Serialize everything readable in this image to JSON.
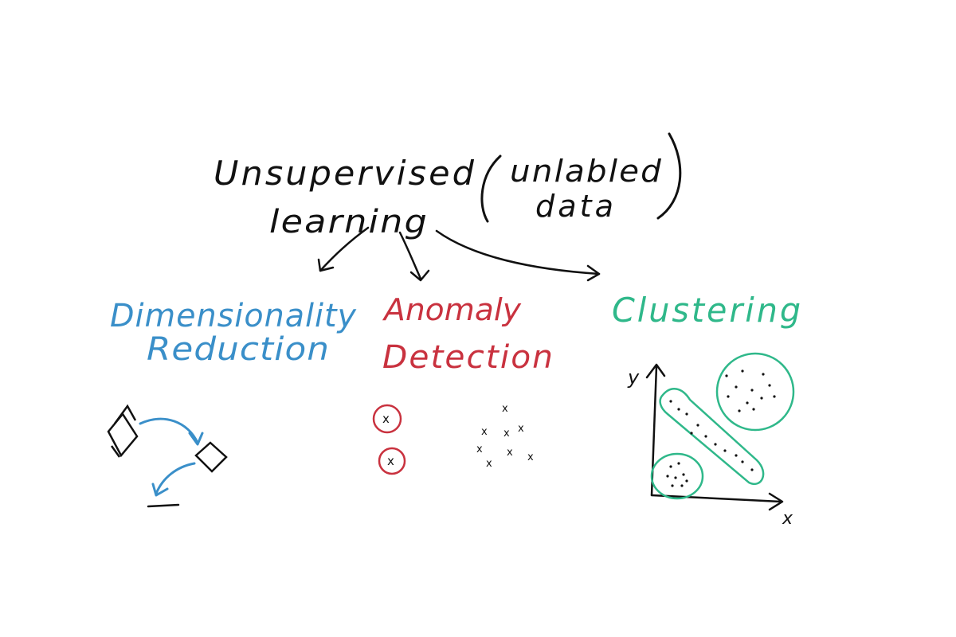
{
  "title": {
    "line1": "Unsupervised",
    "line2": "learning",
    "note_line1": "unlabled",
    "note_line2": "data"
  },
  "branches": [
    {
      "id": "dimensionality",
      "line1": "Dimensionality",
      "line2": "Reduction",
      "color": "#3a8fc9"
    },
    {
      "id": "anomaly",
      "line1": "Anomaly",
      "line2": "Detection",
      "color": "#c9323f"
    },
    {
      "id": "clustering",
      "line1": "Clustering",
      "color": "#2fb88a"
    }
  ],
  "clustering_plot": {
    "x_label": "x",
    "y_label": "y"
  },
  "anomaly_marker": "x",
  "colors": {
    "ink": "#111111",
    "background": "#ffffff"
  }
}
